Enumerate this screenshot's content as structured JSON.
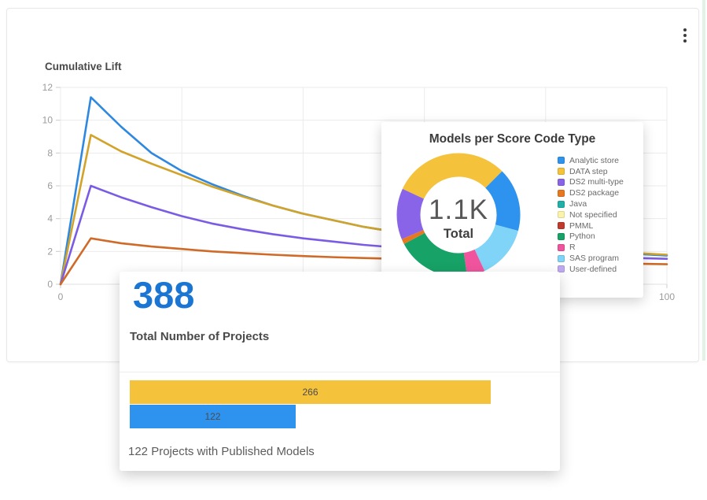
{
  "header": {
    "more_options_icon": "kebab-menu"
  },
  "projects_card": {
    "total_value": "388",
    "total_label": "Total Number of Projects",
    "caption": "122 Projects with Published Models",
    "accent_color": "#1b76d3"
  },
  "chart_data": [
    {
      "type": "line",
      "title": "Cumulative Lift",
      "xlabel": "",
      "ylabel": "",
      "xlim": [
        0,
        100
      ],
      "ylim": [
        0,
        12
      ],
      "yticks": [
        0,
        2,
        4,
        6,
        8,
        10,
        12
      ],
      "xgrid": [
        0,
        20,
        40,
        60,
        80,
        100
      ],
      "xtick_labels": [
        {
          "value": 0,
          "label": "0"
        },
        {
          "value": 100,
          "label": "100"
        }
      ],
      "grid": true,
      "legend_position": "none",
      "x": [
        0,
        5,
        10,
        15,
        20,
        25,
        30,
        35,
        40,
        45,
        50,
        55,
        60,
        65,
        70,
        75,
        80,
        85,
        90,
        95,
        100
      ],
      "series": [
        {
          "name": "blue-series",
          "color": "#2f88e0",
          "values": [
            0,
            11.4,
            9.6,
            8.0,
            6.9,
            6.1,
            5.4,
            4.8,
            4.3,
            3.9,
            3.5,
            3.2,
            2.9,
            2.7,
            2.5,
            2.35,
            2.2,
            2.05,
            1.95,
            1.85,
            1.75
          ]
        },
        {
          "name": "gold-series",
          "color": "#d2a329",
          "values": [
            0,
            9.1,
            8.1,
            7.35,
            6.65,
            5.95,
            5.35,
            4.8,
            4.3,
            3.9,
            3.5,
            3.2,
            2.95,
            2.75,
            2.55,
            2.4,
            2.25,
            2.1,
            2.0,
            1.9,
            1.8
          ]
        },
        {
          "name": "purple-series",
          "color": "#7a5ce4",
          "values": [
            0,
            6.0,
            5.3,
            4.7,
            4.15,
            3.7,
            3.35,
            3.05,
            2.8,
            2.6,
            2.4,
            2.25,
            2.1,
            2.0,
            1.9,
            1.82,
            1.75,
            1.7,
            1.65,
            1.6,
            1.55
          ]
        },
        {
          "name": "orange-series",
          "color": "#cf6a28",
          "values": [
            0,
            2.8,
            2.5,
            2.3,
            2.15,
            2.0,
            1.9,
            1.8,
            1.72,
            1.65,
            1.6,
            1.55,
            1.5,
            1.46,
            1.42,
            1.38,
            1.35,
            1.31,
            1.28,
            1.25,
            1.22
          ]
        }
      ]
    },
    {
      "type": "donut",
      "title": "Models per Score Code Type",
      "center_value": "1.1K",
      "center_label": "Total",
      "total": 1100,
      "start_angle_deg": 295,
      "segments": [
        {
          "label": "DATA step",
          "color": "#f5c23c",
          "value": 336
        },
        {
          "label": "Analytic store",
          "color": "#2e93ee",
          "value": 183
        },
        {
          "label": "SAS program",
          "color": "#7fd4f7",
          "value": 153
        },
        {
          "label": "R",
          "color": "#f0549e",
          "value": 52
        },
        {
          "label": "Python",
          "color": "#17a267",
          "value": 214
        },
        {
          "label": "DS2 package",
          "color": "#e8781f",
          "value": 15
        },
        {
          "label": "DS2 multi-type",
          "color": "#8a64e8",
          "value": 147
        }
      ],
      "legend_position": "right",
      "legend": [
        {
          "label": "Analytic store",
          "color": "#2e93ee"
        },
        {
          "label": "DATA step",
          "color": "#f5c23c"
        },
        {
          "label": "DS2 multi-type",
          "color": "#8a64e8"
        },
        {
          "label": "DS2 package",
          "color": "#e8781f"
        },
        {
          "label": "Java",
          "color": "#1fb0a9"
        },
        {
          "label": "Not specified",
          "color": "#fbf3a9"
        },
        {
          "label": "PMML",
          "color": "#c03a2e"
        },
        {
          "label": "Python",
          "color": "#17a267"
        },
        {
          "label": "R",
          "color": "#f0549e"
        },
        {
          "label": "SAS program",
          "color": "#7fd4f7"
        },
        {
          "label": "User-defined",
          "color": "#c0abf2"
        }
      ]
    },
    {
      "type": "bar-horizontal",
      "title": "",
      "max": 266,
      "bars": [
        {
          "label": "266",
          "value": 266,
          "color": "#f5c23c"
        },
        {
          "label": "122",
          "value": 122,
          "color": "#2e93ee"
        }
      ]
    }
  ]
}
